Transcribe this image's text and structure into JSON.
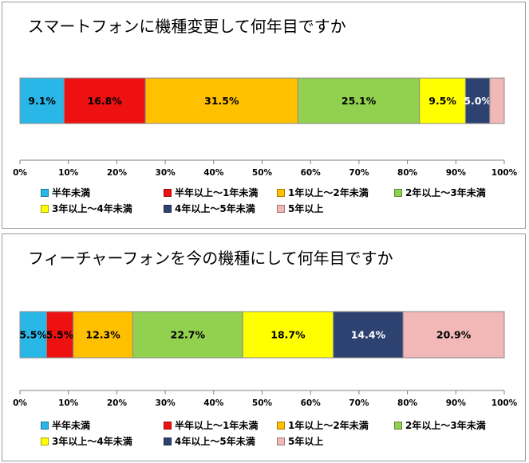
{
  "legend_labels": [
    "半年未満",
    "半年以上〜1年未満",
    "1年以上〜2年未満",
    "2年以上〜3年未満",
    "3年以上〜4年未満",
    "4年以上〜5年未満",
    "5年以上"
  ],
  "colors": [
    "#29b7e8",
    "#ee1111",
    "#ffc000",
    "#92d050",
    "#ffff00",
    "#2e4272",
    "#f2b8b8"
  ],
  "chart_data": [
    {
      "type": "bar",
      "orientation": "horizontal-stacked-100",
      "title": "スマートフォンに機種変更して何年目ですか",
      "series": [
        {
          "name": "半年未満",
          "values": [
            9.1
          ],
          "label": "9.1%"
        },
        {
          "name": "半年以上〜1年未満",
          "values": [
            16.8
          ],
          "label": "16.8%"
        },
        {
          "name": "1年以上〜2年未満",
          "values": [
            31.5
          ],
          "label": "31.5%"
        },
        {
          "name": "2年以上〜3年未満",
          "values": [
            25.1
          ],
          "label": "25.1%"
        },
        {
          "name": "3年以上〜4年未満",
          "values": [
            9.5
          ],
          "label": "9.5%"
        },
        {
          "name": "4年以上〜5年未満",
          "values": [
            5.0
          ],
          "label": "5.0%"
        },
        {
          "name": "5年以上",
          "values": [
            3.0
          ],
          "label": ""
        }
      ],
      "xlim": [
        0,
        100
      ],
      "xticks": [
        "0%",
        "10%",
        "20%",
        "30%",
        "40%",
        "50%",
        "60%",
        "70%",
        "80%",
        "90%",
        "100%"
      ],
      "legend": "bottom"
    },
    {
      "type": "bar",
      "orientation": "horizontal-stacked-100",
      "title": "フィーチャーフォンを今の機種にして何年目ですか",
      "series": [
        {
          "name": "半年未満",
          "values": [
            5.5
          ],
          "label": "5.5%"
        },
        {
          "name": "半年以上〜1年未満",
          "values": [
            5.5
          ],
          "label": "5.5%"
        },
        {
          "name": "1年以上〜2年未満",
          "values": [
            12.3
          ],
          "label": "12.3%"
        },
        {
          "name": "2年以上〜3年未満",
          "values": [
            22.7
          ],
          "label": "22.7%"
        },
        {
          "name": "3年以上〜4年未満",
          "values": [
            18.7
          ],
          "label": "18.7%"
        },
        {
          "name": "4年以上〜5年未満",
          "values": [
            14.4
          ],
          "label": "14.4%"
        },
        {
          "name": "5年以上",
          "values": [
            20.9
          ],
          "label": "20.9%"
        }
      ],
      "xlim": [
        0,
        100
      ],
      "xticks": [
        "0%",
        "10%",
        "20%",
        "30%",
        "40%",
        "50%",
        "60%",
        "70%",
        "80%",
        "90%",
        "100%"
      ],
      "legend": "bottom"
    }
  ]
}
